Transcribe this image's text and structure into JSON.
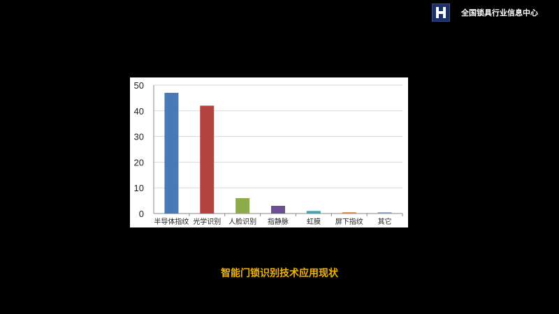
{
  "header": {
    "brand": "全国锁具行业信息中心",
    "logo_letter": "H"
  },
  "caption": "智能门锁识别技术应用现状",
  "chart_data": {
    "type": "bar",
    "categories": [
      "半导体指纹",
      "光学识别",
      "人脸识别",
      "指静脉",
      "虹膜",
      "屏下指纹",
      "其它"
    ],
    "values": [
      47,
      42,
      6,
      3,
      1,
      0.5,
      0.5
    ],
    "colors": [
      "#4a7ab5",
      "#b4443f",
      "#8dab4a",
      "#6c4e93",
      "#3fa3b5",
      "#e0883a",
      "#8aa0c8"
    ],
    "ylim": [
      0,
      50
    ],
    "yticks": [
      0,
      10,
      20,
      30,
      40,
      50
    ],
    "grid": true,
    "title": "",
    "xlabel": "",
    "ylabel": ""
  }
}
